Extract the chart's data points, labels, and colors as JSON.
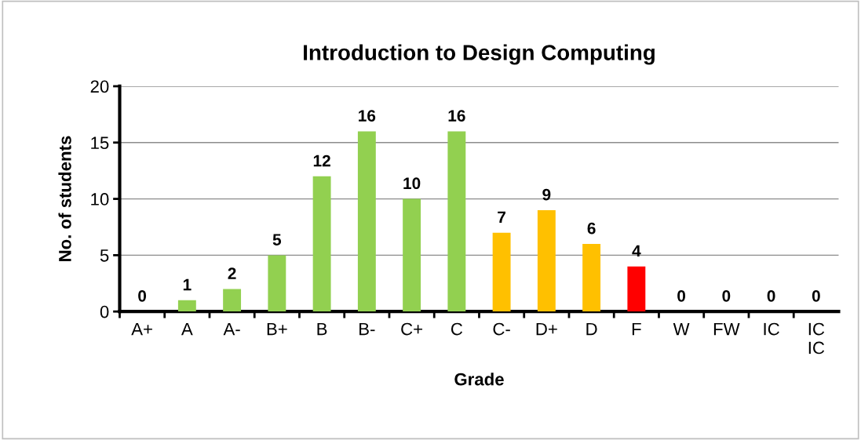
{
  "chart_data": {
    "type": "bar",
    "title": "Introduction to Design Computing",
    "xlabel": "Grade",
    "ylabel": "No. of students",
    "categories": [
      "A+",
      "A",
      "A-",
      "B+",
      "B",
      "B-",
      "C+",
      "C",
      "C-",
      "D+",
      "D",
      "F",
      "W",
      "FW",
      "IC",
      "IC\nIC"
    ],
    "values": [
      0,
      1,
      2,
      5,
      12,
      16,
      10,
      16,
      7,
      9,
      6,
      4,
      0,
      0,
      0,
      0
    ],
    "colors": [
      "#92d050",
      "#92d050",
      "#92d050",
      "#92d050",
      "#92d050",
      "#92d050",
      "#92d050",
      "#92d050",
      "#ffc000",
      "#ffc000",
      "#ffc000",
      "#ff0000",
      "#92d050",
      "#92d050",
      "#92d050",
      "#92d050"
    ],
    "ylim": [
      0,
      20
    ],
    "yticks": [
      0,
      5,
      10,
      15,
      20
    ],
    "grid": "y",
    "data_labels": true
  }
}
